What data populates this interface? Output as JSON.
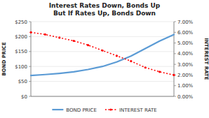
{
  "chart_data": {
    "type": "line",
    "title": "Interest Rates Down, Bonds Up",
    "subtitle": "But If Rates Up, Bonds Down",
    "ylabel": "BOND PRICE",
    "y2label": "INTEREST RATE",
    "x": [
      0,
      1,
      2,
      3,
      4,
      5,
      6,
      7,
      8,
      9,
      10
    ],
    "xlim": [
      0,
      10
    ],
    "ylim": [
      0,
      250
    ],
    "yticks": [
      {
        "value": 0,
        "label": "$0"
      },
      {
        "value": 50,
        "label": "$50"
      },
      {
        "value": 100,
        "label": "$100"
      },
      {
        "value": 150,
        "label": "$150"
      },
      {
        "value": 200,
        "label": "$200"
      },
      {
        "value": 250,
        "label": "$250"
      }
    ],
    "y2lim": [
      0.0,
      0.07
    ],
    "y2ticks": [
      {
        "value": 0.0,
        "label": "0.00%"
      },
      {
        "value": 0.01,
        "label": "1.00%"
      },
      {
        "value": 0.02,
        "label": "2.00%"
      },
      {
        "value": 0.03,
        "label": "3.00%"
      },
      {
        "value": 0.04,
        "label": "4.00%"
      },
      {
        "value": 0.05,
        "label": "5.00%"
      },
      {
        "value": 0.06,
        "label": "6.00%"
      },
      {
        "value": 0.07,
        "label": "7.00%"
      }
    ],
    "grid": true,
    "legend": "bottom",
    "tick_labels": "y",
    "series": [
      {
        "name": "BOND PRICE",
        "color": "#5B9BD5",
        "line_style": "solid",
        "values": [
          70,
          73,
          77,
          82,
          90,
          100,
          115,
          135,
          160,
          185,
          207
        ]
      },
      {
        "name": "INTEREST RATE",
        "color": "#FF0000",
        "axis": "y2",
        "line_style": "dotted",
        "marker": "circle",
        "values": [
          0.06,
          0.058,
          0.055,
          0.052,
          0.048,
          0.043,
          0.038,
          0.033,
          0.027,
          0.023,
          0.02
        ]
      }
    ]
  }
}
